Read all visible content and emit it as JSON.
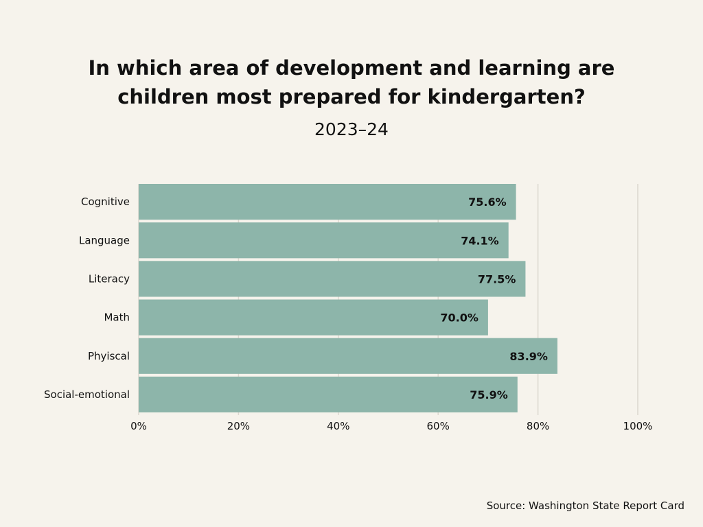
{
  "chart_data": {
    "type": "bar",
    "orientation": "horizontal",
    "title_lines": [
      "In which area of development and learning are",
      "children most prepared for kindergarten?"
    ],
    "subtitle": "2023–24",
    "categories": [
      "Cognitive",
      "Language",
      "Literacy",
      "Math",
      "Phyiscal",
      "Social-emotional"
    ],
    "values": [
      75.6,
      74.1,
      77.5,
      70.0,
      83.9,
      75.9
    ],
    "value_labels": [
      "75.6%",
      "74.1%",
      "77.5%",
      "70.0%",
      "83.9%",
      "75.9%"
    ],
    "xlim": [
      0,
      100
    ],
    "x_ticks": [
      0,
      20,
      40,
      60,
      80,
      100
    ],
    "x_tick_labels": [
      "0%",
      "20%",
      "40%",
      "60%",
      "80%",
      "100%"
    ],
    "grid": true,
    "bar_color": "#8db5aa",
    "source": "Source: Washington State Report Card"
  }
}
